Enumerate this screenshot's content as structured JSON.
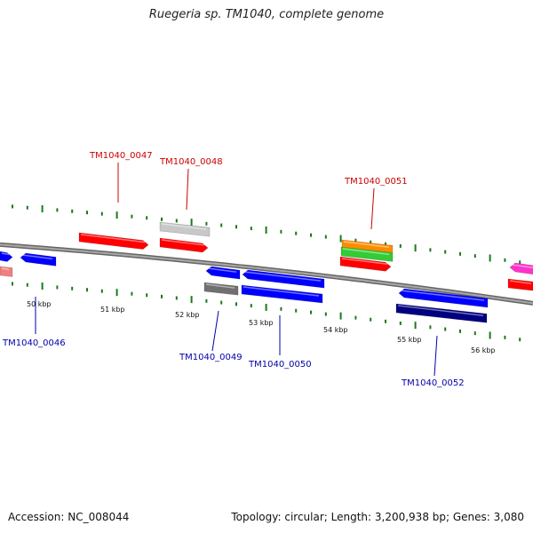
{
  "title": "Ruegeria sp. TM1040, complete genome",
  "footer": {
    "accession": "Accession: NC_008044",
    "summary": "Topology: circular; Length: 3,200,938 bp; Genes: 3,080"
  },
  "colors": {
    "backbone": "#8c8c8c",
    "tick": "#1a7a1a",
    "forward_label": "#cc0000",
    "reverse_label": "#0000aa",
    "red": "#ff0000",
    "blue": "#0000ff",
    "navy": "#000080",
    "gray": "#707070",
    "lightgray": "#c8c8c8",
    "orange": "#ff8c00",
    "green": "#33cc33",
    "magenta": "#ff33cc",
    "salmon": "#f08080"
  },
  "tick_labels": [
    "50 kbp",
    "51 kbp",
    "52 kbp",
    "53 kbp",
    "54 kbp",
    "55 kbp",
    "56 kbp"
  ],
  "gene_labels": [
    "TM1040_0046",
    "TM1040_0047",
    "TM1040_0048",
    "TM1040_0049",
    "TM1040_0050",
    "TM1040_0051",
    "TM1040_0052"
  ]
}
